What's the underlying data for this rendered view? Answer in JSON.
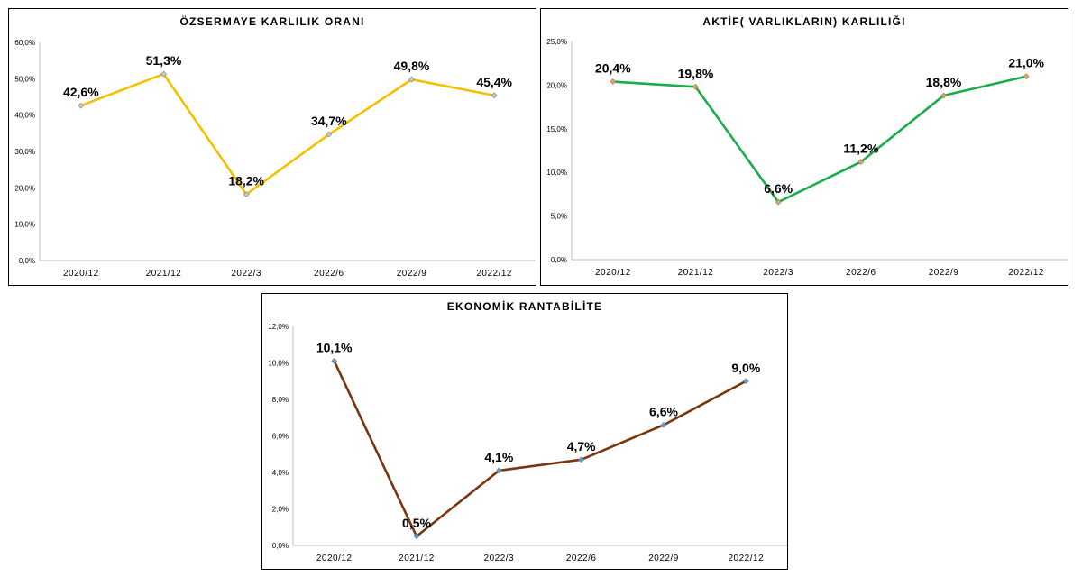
{
  "chart_data": [
    {
      "type": "line",
      "title": "ÖZSERMAYE KARLILIK ORANI",
      "categories": [
        "2020/12",
        "2021/12",
        "2022/3",
        "2022/6",
        "2022/9",
        "2022/12"
      ],
      "values": [
        42.6,
        51.3,
        18.2,
        34.7,
        49.8,
        45.4
      ],
      "data_labels": [
        "42,6%",
        "51,3%",
        "18,2%",
        "34,7%",
        "49,8%",
        "45,4%"
      ],
      "yticks": [
        "0,0%",
        "10,0%",
        "20,0%",
        "30,0%",
        "40,0%",
        "50,0%",
        "60,0%"
      ],
      "ylim": [
        0,
        60
      ],
      "line_color": "#f5c000",
      "marker_color": "#c8c8c8",
      "grid": false
    },
    {
      "type": "line",
      "title": "AKTİF( VARLIKLARIN) KARLILIĞI",
      "categories": [
        "2020/12",
        "2021/12",
        "2022/3",
        "2022/6",
        "2022/9",
        "2022/12"
      ],
      "values": [
        20.4,
        19.8,
        6.6,
        11.2,
        18.8,
        21.0
      ],
      "data_labels": [
        "20,4%",
        "19,8%",
        "6,6%",
        "11,2%",
        "18,8%",
        "21,0%"
      ],
      "yticks": [
        "0,0%",
        "5,0%",
        "10,0%",
        "15,0%",
        "20,0%",
        "25,0%"
      ],
      "ylim": [
        0,
        25
      ],
      "line_color": "#1aab4b",
      "marker_color": "#f0a050",
      "grid": false
    },
    {
      "type": "line",
      "title": "EKONOMİK RANTABİLİTE",
      "categories": [
        "2020/12",
        "2021/12",
        "2022/3",
        "2022/6",
        "2022/9",
        "2022/12"
      ],
      "values": [
        10.1,
        0.5,
        4.1,
        4.7,
        6.6,
        9.0
      ],
      "data_labels": [
        "10,1%",
        "0,5%",
        "4,1%",
        "4,7%",
        "6,6%",
        "9,0%"
      ],
      "yticks": [
        "0,0%",
        "2,0%",
        "4,0%",
        "6,0%",
        "8,0%",
        "10,0%",
        "12,0%"
      ],
      "ylim": [
        0,
        12
      ],
      "line_color": "#7b3410",
      "marker_color": "#5b9bd5",
      "grid": false
    }
  ]
}
